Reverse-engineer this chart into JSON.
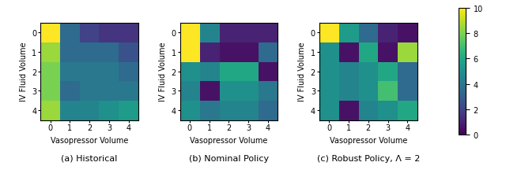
{
  "title_a": "(a) Historical",
  "title_b": "(b) Nominal Policy",
  "title_c": "(c) Robust Policy, Λ = 2",
  "xlabel": "Vasopressor Volume",
  "ylabel": "IV Fluid Volume",
  "cmap": "viridis",
  "vmin": 0,
  "vmax": 10,
  "colorbar_ticks": [
    0,
    2,
    4,
    6,
    8,
    10
  ],
  "heatmap_a": [
    [
      10.0,
      3.5,
      2.0,
      1.5,
      1.5
    ],
    [
      8.5,
      3.5,
      3.5,
      3.5,
      2.5
    ],
    [
      8.0,
      4.0,
      4.0,
      4.0,
      3.5
    ],
    [
      8.0,
      3.5,
      4.0,
      4.0,
      4.0
    ],
    [
      8.5,
      4.5,
      4.5,
      5.0,
      5.5
    ]
  ],
  "heatmap_b": [
    [
      10.0,
      4.5,
      1.0,
      1.0,
      1.0
    ],
    [
      10.0,
      1.0,
      0.5,
      0.5,
      3.5
    ],
    [
      5.0,
      4.5,
      6.0,
      6.0,
      0.5
    ],
    [
      4.5,
      0.5,
      5.0,
      5.0,
      4.0
    ],
    [
      5.0,
      4.0,
      4.5,
      4.5,
      3.5
    ]
  ],
  "heatmap_c": [
    [
      10.0,
      5.5,
      3.5,
      1.0,
      0.5
    ],
    [
      5.0,
      0.5,
      6.0,
      0.5,
      8.5
    ],
    [
      5.0,
      4.5,
      5.0,
      6.0,
      3.5
    ],
    [
      5.0,
      4.5,
      5.0,
      7.0,
      3.5
    ],
    [
      5.0,
      0.5,
      4.5,
      5.0,
      6.0
    ]
  ],
  "tick_labels": [
    0,
    1,
    2,
    3,
    4
  ],
  "figsize": [
    6.4,
    2.26
  ],
  "dpi": 100,
  "fontsize_title": 8,
  "fontsize_label": 7,
  "fontsize_tick": 7
}
